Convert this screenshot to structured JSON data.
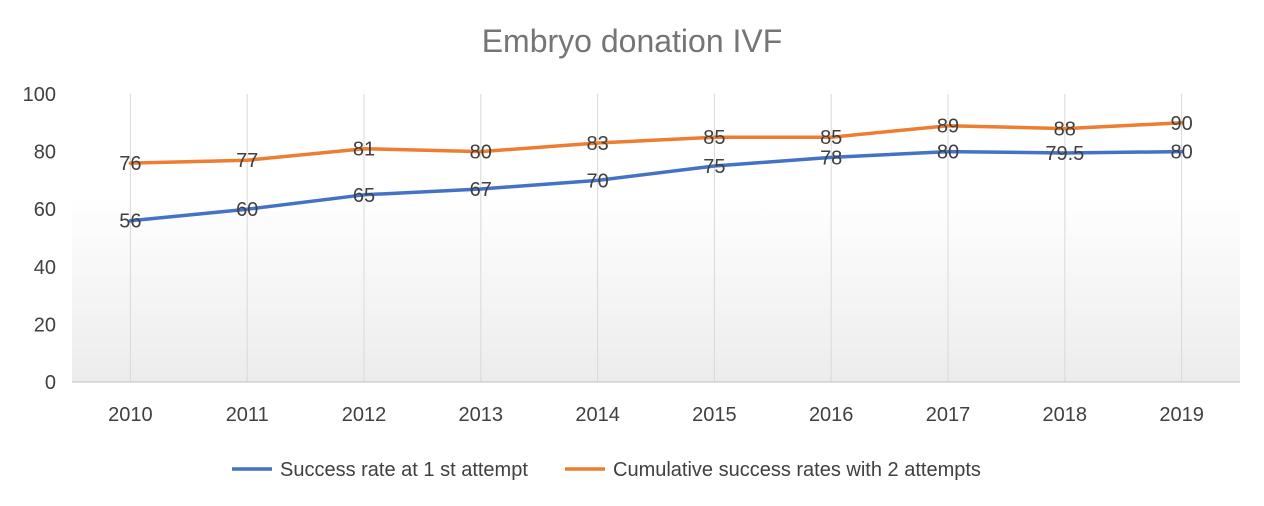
{
  "chart_data": {
    "type": "line",
    "title": "Embryo donation IVF",
    "categories": [
      "2010",
      "2011",
      "2012",
      "2013",
      "2014",
      "2015",
      "2016",
      "2017",
      "2018",
      "2019"
    ],
    "series": [
      {
        "name": "Success rate at 1 st attempt",
        "values": [
          56,
          60,
          65,
          67,
          70,
          75,
          78,
          80,
          79.5,
          80
        ],
        "labels": [
          "56",
          "60",
          "65",
          "67",
          "70",
          "75",
          "78",
          "80",
          "79.5",
          "80"
        ],
        "color": "#4472C4"
      },
      {
        "name": "Cumulative success rates with 2 attempts",
        "values": [
          76,
          77,
          81,
          80,
          83,
          85,
          85,
          89,
          88,
          90
        ],
        "labels": [
          "76",
          "77",
          "81",
          "80",
          "83",
          "85",
          "85",
          "89",
          "88",
          "90"
        ],
        "color": "#ED7D31"
      }
    ],
    "ylim": [
      0,
      100
    ],
    "yticks": [
      "0",
      "20",
      "40",
      "60",
      "80",
      "100"
    ],
    "xlabel": "",
    "ylabel": "",
    "legend": "bottom",
    "grid": "vertical"
  }
}
